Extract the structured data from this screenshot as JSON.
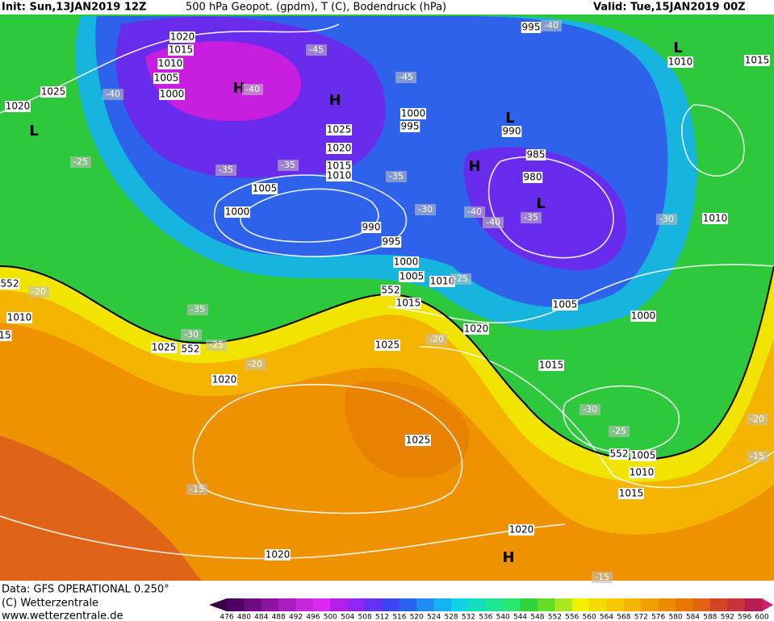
{
  "header": {
    "init": "Init: Sun,13JAN2019 12Z",
    "title": "500 hPa Geopot. (gpdm), T (C), Bodendruck (hPa)",
    "valid": "Valid: Tue,15JAN2019 00Z"
  },
  "footer": {
    "data": "Data: GFS OPERATIONAL 0.250°",
    "copyright": "(C) Wetterzentrale",
    "url": "www.wetterzentrale.de"
  },
  "colorbar": {
    "labels": [
      476,
      480,
      484,
      488,
      492,
      496,
      500,
      504,
      508,
      512,
      516,
      520,
      524,
      528,
      532,
      536,
      540,
      544,
      548,
      552,
      556,
      560,
      564,
      568,
      572,
      576,
      580,
      584,
      588,
      592,
      596,
      600
    ]
  },
  "map": {
    "labels": [
      "1020",
      "1015",
      "1010",
      "1005",
      "1000",
      "1025",
      "1020",
      "-40",
      "H",
      "-40",
      "-45",
      "H",
      "1025",
      "1020",
      "1015",
      "1010",
      "-35",
      "-35",
      "-25",
      "L",
      "995",
      "-40",
      "L",
      "1010",
      "1015",
      "-45",
      "1000",
      "995",
      "L",
      "990",
      "985",
      "H",
      "980",
      "-35",
      "1005",
      "1000",
      "L",
      "-40",
      "-40",
      "-35",
      "-30",
      "990",
      "995",
      "-30",
      "1010",
      "1000",
      "1005",
      "1010",
      "-25",
      "552",
      "552",
      "-20",
      "1015",
      "1010",
      "-35",
      "1005",
      "1000",
      "-30",
      "1025",
      "552",
      "-25",
      "1020",
      "1025",
      "-20",
      "15",
      "-20",
      "1020",
      "1015",
      "-30",
      "-25",
      "-20",
      "1025",
      "552",
      "1005",
      "1010",
      "1015",
      "-15",
      "1020",
      "-15",
      "1020",
      "H",
      "-15"
    ]
  }
}
